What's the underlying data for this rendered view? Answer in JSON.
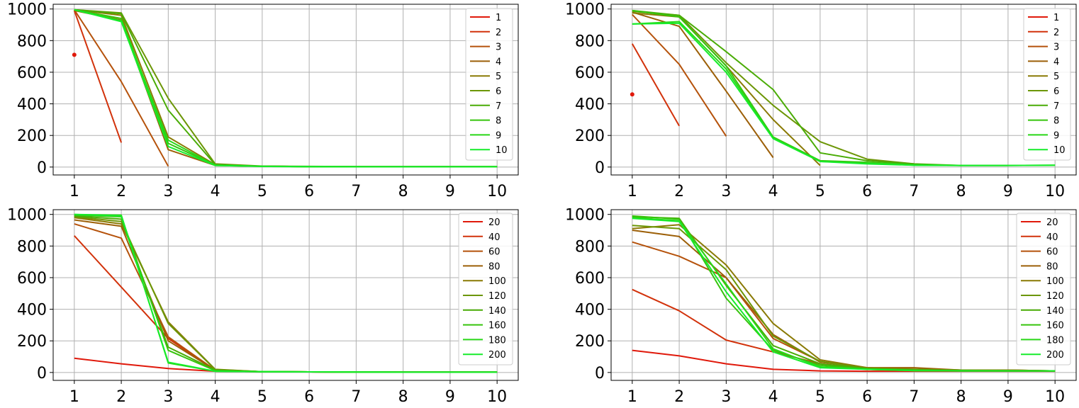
{
  "chart_data": [
    {
      "type": "line",
      "x": [
        1,
        2,
        3,
        4,
        5,
        6,
        7,
        8,
        9,
        10
      ],
      "xlim": [
        0.55,
        10.45
      ],
      "ylim": [
        -50,
        1030
      ],
      "xticks": [
        1,
        2,
        3,
        4,
        5,
        6,
        7,
        8,
        9,
        10
      ],
      "yticks": [
        0,
        200,
        400,
        600,
        800,
        1000
      ],
      "grid": true,
      "legend_position": "top-right",
      "series": [
        {
          "name": "1",
          "color": "#e0190b",
          "values": [
            710,
            null,
            null,
            null,
            null,
            null,
            null,
            null,
            null,
            null
          ]
        },
        {
          "name": "2",
          "color": "#d2320b",
          "values": [
            990,
            155,
            null,
            null,
            null,
            null,
            null,
            null,
            null,
            null
          ]
        },
        {
          "name": "3",
          "color": "#b5520b",
          "values": [
            995,
            540,
            5,
            null,
            null,
            null,
            null,
            null,
            null,
            null
          ]
        },
        {
          "name": "4",
          "color": "#9c5f07",
          "values": [
            990,
            930,
            110,
            10,
            5,
            3,
            2,
            2,
            2,
            2
          ]
        },
        {
          "name": "5",
          "color": "#8a7a05",
          "values": [
            995,
            960,
            190,
            15,
            5,
            3,
            2,
            2,
            2,
            2
          ]
        },
        {
          "name": "6",
          "color": "#6c9606",
          "values": [
            995,
            975,
            435,
            20,
            6,
            4,
            3,
            2,
            2,
            2
          ]
        },
        {
          "name": "7",
          "color": "#4aac06",
          "values": [
            995,
            970,
            360,
            15,
            5,
            3,
            2,
            2,
            2,
            2
          ]
        },
        {
          "name": "8",
          "color": "#36c40c",
          "values": [
            995,
            940,
            150,
            12,
            5,
            3,
            2,
            2,
            2,
            2
          ]
        },
        {
          "name": "9",
          "color": "#2ad818",
          "values": [
            995,
            925,
            170,
            12,
            4,
            3,
            2,
            2,
            2,
            2
          ]
        },
        {
          "name": "10",
          "color": "#16ec2a",
          "values": [
            995,
            920,
            130,
            10,
            4,
            3,
            2,
            2,
            2,
            2
          ]
        }
      ]
    },
    {
      "type": "line",
      "x": [
        1,
        2,
        3,
        4,
        5,
        6,
        7,
        8,
        9,
        10
      ],
      "xlim": [
        0.55,
        10.45
      ],
      "ylim": [
        -50,
        1030
      ],
      "xticks": [
        1,
        2,
        3,
        4,
        5,
        6,
        7,
        8,
        9,
        10
      ],
      "yticks": [
        0,
        200,
        400,
        600,
        800,
        1000
      ],
      "grid": true,
      "legend_position": "top-right",
      "series": [
        {
          "name": "1",
          "color": "#e0190b",
          "values": [
            460,
            null,
            null,
            null,
            null,
            null,
            null,
            null,
            null,
            null
          ]
        },
        {
          "name": "2",
          "color": "#d2320b",
          "values": [
            780,
            260,
            null,
            null,
            null,
            null,
            null,
            null,
            null,
            null
          ]
        },
        {
          "name": "3",
          "color": "#b5520b",
          "values": [
            965,
            650,
            195,
            null,
            null,
            null,
            null,
            null,
            null,
            null
          ]
        },
        {
          "name": "4",
          "color": "#9c5f07",
          "values": [
            980,
            890,
            480,
            60,
            null,
            null,
            null,
            null,
            null,
            null
          ]
        },
        {
          "name": "5",
          "color": "#8a7a05",
          "values": [
            975,
            950,
            640,
            300,
            10,
            null,
            null,
            null,
            null,
            null
          ]
        },
        {
          "name": "6",
          "color": "#6c9606",
          "values": [
            985,
            960,
            660,
            390,
            160,
            50,
            20,
            null,
            null,
            null
          ]
        },
        {
          "name": "7",
          "color": "#4aac06",
          "values": [
            990,
            960,
            730,
            490,
            90,
            40,
            20,
            10,
            null,
            null
          ]
        },
        {
          "name": "8",
          "color": "#36c40c",
          "values": [
            990,
            950,
            640,
            190,
            40,
            30,
            15,
            10,
            10,
            null
          ]
        },
        {
          "name": "9",
          "color": "#2ad818",
          "values": [
            905,
            920,
            620,
            185,
            35,
            25,
            12,
            10,
            10,
            12
          ]
        },
        {
          "name": "10",
          "color": "#16ec2a",
          "values": [
            905,
            910,
            600,
            180,
            35,
            20,
            12,
            10,
            10,
            12
          ]
        }
      ]
    },
    {
      "type": "line",
      "x": [
        1,
        2,
        3,
        4,
        5,
        6,
        7,
        8,
        9,
        10
      ],
      "xlim": [
        0.55,
        10.45
      ],
      "ylim": [
        -50,
        1030
      ],
      "xticks": [
        1,
        2,
        3,
        4,
        5,
        6,
        7,
        8,
        9,
        10
      ],
      "yticks": [
        0,
        200,
        400,
        600,
        800,
        1000
      ],
      "grid": true,
      "legend_position": "top-right",
      "series": [
        {
          "name": "20",
          "color": "#e0190b",
          "values": [
            90,
            55,
            25,
            8,
            5,
            4,
            3,
            2,
            2,
            2
          ]
        },
        {
          "name": "40",
          "color": "#d2320b",
          "values": [
            865,
            540,
            215,
            15,
            5,
            4,
            3,
            2,
            2,
            2
          ]
        },
        {
          "name": "60",
          "color": "#b5520b",
          "values": [
            940,
            850,
            225,
            15,
            5,
            4,
            3,
            2,
            2,
            2
          ]
        },
        {
          "name": "80",
          "color": "#9c5f07",
          "values": [
            965,
            925,
            200,
            15,
            5,
            4,
            3,
            2,
            2,
            2
          ]
        },
        {
          "name": "100",
          "color": "#8a7a05",
          "values": [
            980,
            940,
            320,
            20,
            5,
            4,
            3,
            2,
            2,
            2
          ]
        },
        {
          "name": "120",
          "color": "#6c9606",
          "values": [
            985,
            955,
            310,
            18,
            5,
            4,
            3,
            2,
            2,
            2
          ]
        },
        {
          "name": "140",
          "color": "#4aac06",
          "values": [
            990,
            970,
            160,
            15,
            5,
            4,
            3,
            2,
            2,
            2
          ]
        },
        {
          "name": "160",
          "color": "#36c40c",
          "values": [
            995,
            985,
            140,
            12,
            5,
            4,
            3,
            2,
            2,
            2
          ]
        },
        {
          "name": "180",
          "color": "#2ad818",
          "values": [
            1000,
            995,
            60,
            8,
            5,
            4,
            3,
            2,
            2,
            2
          ]
        },
        {
          "name": "200",
          "color": "#16ec2a",
          "values": [
            1000,
            990,
            65,
            8,
            5,
            4,
            3,
            2,
            2,
            2
          ]
        }
      ]
    },
    {
      "type": "line",
      "x": [
        1,
        2,
        3,
        4,
        5,
        6,
        7,
        8,
        9,
        10
      ],
      "xlim": [
        0.55,
        10.45
      ],
      "ylim": [
        -50,
        1030
      ],
      "xticks": [
        1,
        2,
        3,
        4,
        5,
        6,
        7,
        8,
        9,
        10
      ],
      "yticks": [
        0,
        200,
        400,
        600,
        800,
        1000
      ],
      "grid": true,
      "legend_position": "top-right",
      "series": [
        {
          "name": "20",
          "color": "#e0190b",
          "values": [
            140,
            105,
            55,
            20,
            10,
            8,
            8,
            8,
            8,
            8
          ]
        },
        {
          "name": "40",
          "color": "#d2320b",
          "values": [
            525,
            390,
            205,
            130,
            55,
            25,
            15,
            12,
            12,
            10
          ]
        },
        {
          "name": "60",
          "color": "#b5520b",
          "values": [
            825,
            735,
            600,
            215,
            70,
            25,
            20,
            15,
            15,
            10
          ]
        },
        {
          "name": "80",
          "color": "#9c5f07",
          "values": [
            900,
            860,
            600,
            240,
            65,
            30,
            30,
            15,
            15,
            10
          ]
        },
        {
          "name": "100",
          "color": "#8a7a05",
          "values": [
            910,
            935,
            680,
            310,
            80,
            30,
            20,
            15,
            15,
            10
          ]
        },
        {
          "name": "120",
          "color": "#6c9606",
          "values": [
            930,
            910,
            650,
            230,
            70,
            25,
            20,
            15,
            12,
            10
          ]
        },
        {
          "name": "140",
          "color": "#4aac06",
          "values": [
            985,
            975,
            550,
            170,
            55,
            25,
            15,
            12,
            10,
            10
          ]
        },
        {
          "name": "160",
          "color": "#36c40c",
          "values": [
            990,
            970,
            470,
            140,
            45,
            20,
            15,
            10,
            10,
            10
          ]
        },
        {
          "name": "180",
          "color": "#2ad818",
          "values": [
            980,
            960,
            560,
            150,
            35,
            20,
            12,
            10,
            10,
            10
          ]
        },
        {
          "name": "200",
          "color": "#16ec2a",
          "values": [
            975,
            955,
            510,
            130,
            30,
            20,
            12,
            10,
            10,
            10
          ]
        }
      ]
    }
  ]
}
